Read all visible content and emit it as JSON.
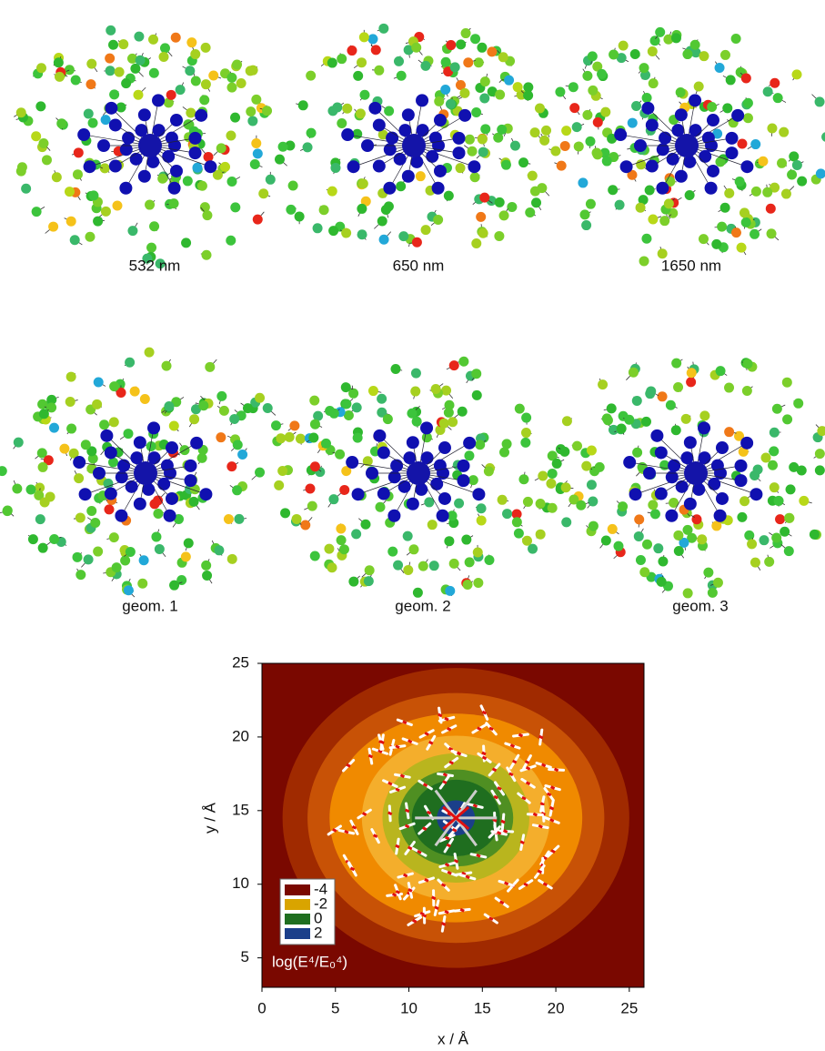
{
  "panels": [
    {
      "label": "532 nm"
    },
    {
      "label": "650 nm"
    },
    {
      "label": "1650 nm"
    },
    {
      "label": "geom. 1"
    },
    {
      "label": "geom. 2"
    },
    {
      "label": "geom. 3"
    }
  ],
  "chart_data": {
    "type": "contour",
    "x_label": "x / Å",
    "y_label": "y / Å",
    "xlim": [
      0,
      26
    ],
    "ylim": [
      3,
      25
    ],
    "xticks": [
      0,
      5,
      10,
      15,
      20,
      25
    ],
    "yticks": [
      5,
      10,
      15,
      20,
      25
    ],
    "colorbar_label": "log(E⁴/E₀⁴)",
    "legend": [
      {
        "level": -4,
        "color": "#7a0800"
      },
      {
        "level": -2,
        "color": "#d9a400"
      },
      {
        "level": 0,
        "color": "#1f6e1f"
      },
      {
        "level": 2,
        "color": "#1b3f8a"
      }
    ],
    "band_colors": [
      "#7a0800",
      "#a02a00",
      "#c85206",
      "#f08a00",
      "#f4ae2c",
      "#b9b51e",
      "#4f8f22",
      "#1f6e1f",
      "#1b3f8a"
    ]
  }
}
